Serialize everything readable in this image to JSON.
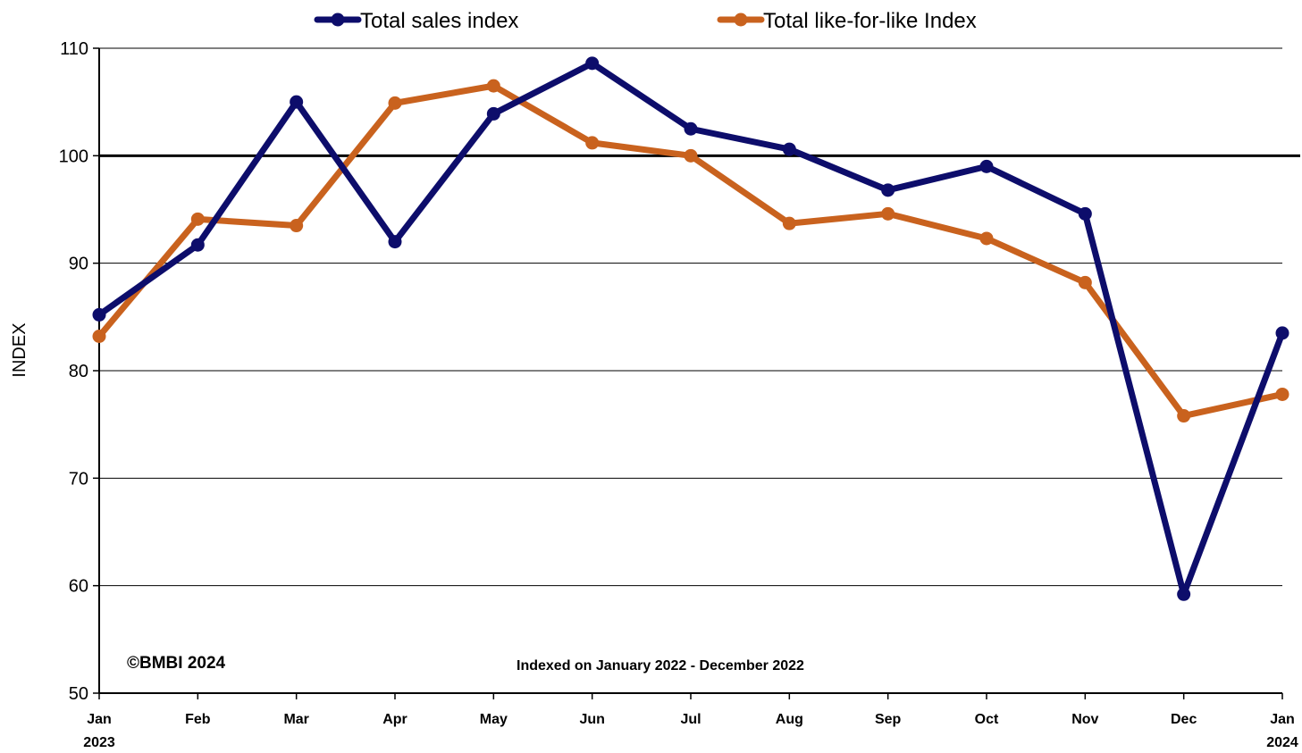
{
  "chart_data": {
    "type": "line",
    "categories": [
      "Jan",
      "Feb",
      "Mar",
      "Apr",
      "May",
      "Jun",
      "Jul",
      "Aug",
      "Sep",
      "Oct",
      "Nov",
      "Dec",
      "Jan"
    ],
    "category_years": [
      "2023",
      "",
      "",
      "",
      "",
      "",
      "",
      "",
      "",
      "",
      "",
      "",
      "2024"
    ],
    "series": [
      {
        "name": "Total sales index",
        "color": "#0d0d6b",
        "values": [
          85.2,
          91.7,
          105.0,
          92.0,
          103.9,
          108.6,
          102.5,
          100.6,
          96.8,
          99.0,
          94.6,
          59.2,
          83.5
        ]
      },
      {
        "name": "Total like-for-like Index",
        "color": "#c9621e",
        "values": [
          83.2,
          94.1,
          93.5,
          104.9,
          106.5,
          101.2,
          100.0,
          93.7,
          94.6,
          92.3,
          88.2,
          75.8,
          77.8
        ]
      }
    ],
    "ylabel": "INDEX",
    "xlabel": "",
    "ylim": [
      50,
      110
    ],
    "yticks": [
      50,
      60,
      70,
      80,
      90,
      100,
      110
    ],
    "reference_line": 100,
    "grid": true,
    "legend_position": "top-center",
    "annotations": {
      "copyright": "©BMBI 2024",
      "indexed": "Indexed on January 2022 - December 2022"
    }
  }
}
